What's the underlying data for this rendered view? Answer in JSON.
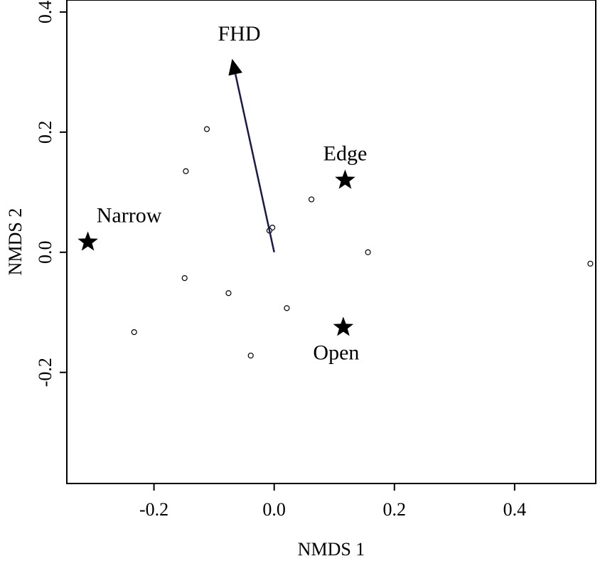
{
  "chart_data": {
    "type": "scatter",
    "title": "",
    "xlabel": "NMDS 1",
    "ylabel": "NMDS 2",
    "xlim": [
      -0.345,
      0.535
    ],
    "ylim": [
      -0.385,
      0.42
    ],
    "xticks": [
      -0.2,
      0.0,
      0.2,
      0.4
    ],
    "xtick_labels": [
      "-0.2",
      "0.0",
      "0.2",
      "0.4"
    ],
    "yticks": [
      -0.2,
      0.0,
      0.2,
      0.4
    ],
    "ytick_labels": [
      "-0.2",
      "0.0",
      "0.2",
      "0.4"
    ],
    "grid": false,
    "points": [
      {
        "x": -0.112,
        "y": 0.205
      },
      {
        "x": -0.147,
        "y": 0.135
      },
      {
        "x": 0.062,
        "y": 0.088
      },
      {
        "x": -0.003,
        "y": 0.041
      },
      {
        "x": -0.008,
        "y": 0.036
      },
      {
        "x": 0.156,
        "y": 0.0
      },
      {
        "x": 0.526,
        "y": -0.019
      },
      {
        "x": -0.149,
        "y": -0.043
      },
      {
        "x": -0.076,
        "y": -0.068
      },
      {
        "x": 0.021,
        "y": -0.093
      },
      {
        "x": -0.233,
        "y": -0.133
      },
      {
        "x": -0.039,
        "y": -0.172
      }
    ],
    "centroids": [
      {
        "label": "Narrow",
        "x": -0.31,
        "y": 0.017
      },
      {
        "label": "Edge",
        "x": 0.118,
        "y": 0.12
      },
      {
        "label": "Open",
        "x": 0.115,
        "y": -0.125
      }
    ],
    "vectors": [
      {
        "label": "FHD",
        "x0": 0.0,
        "y0": 0.0,
        "x1": -0.07,
        "y1": 0.322,
        "color": "#1a1a4a"
      }
    ]
  }
}
